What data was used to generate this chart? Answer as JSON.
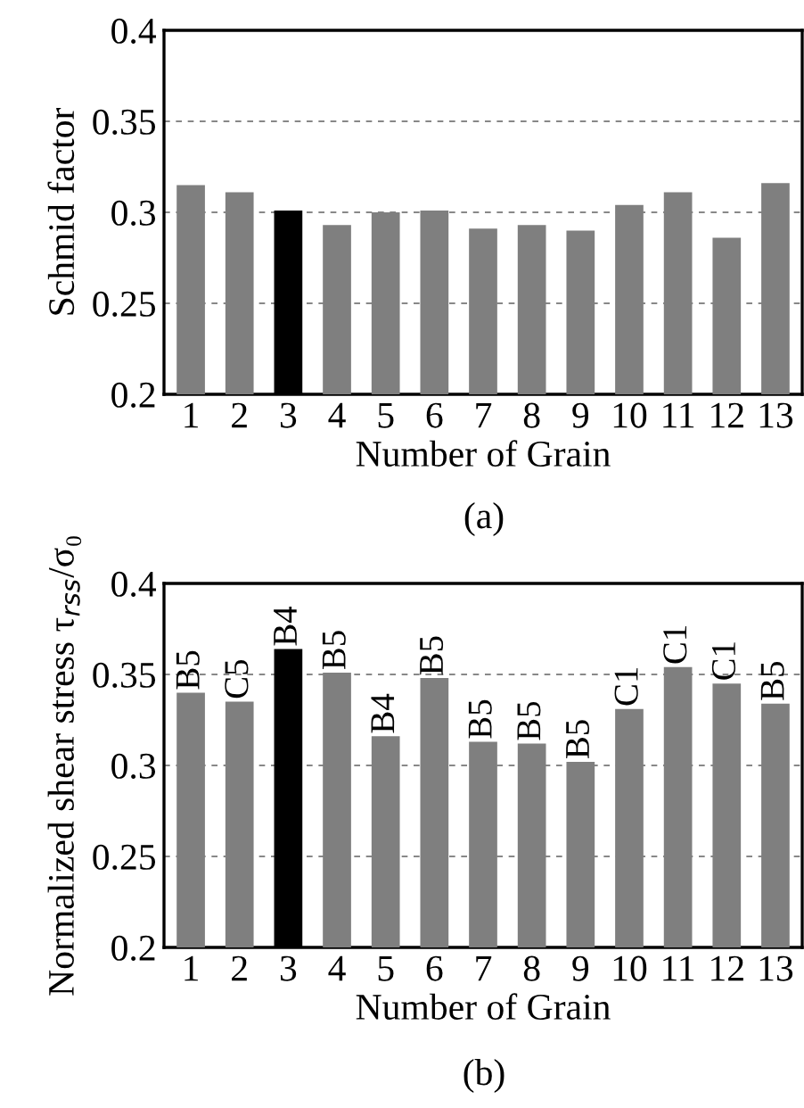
{
  "chart_data": [
    {
      "type": "bar",
      "ylabel": "Schmid factor",
      "xlabel": "Number of Grain",
      "annotations": [
        "(a)"
      ],
      "categories": [
        "1",
        "2",
        "3",
        "4",
        "5",
        "6",
        "7",
        "8",
        "9",
        "10",
        "11",
        "12",
        "13"
      ],
      "values": [
        0.315,
        0.311,
        0.301,
        0.293,
        0.3,
        0.301,
        0.291,
        0.293,
        0.29,
        0.304,
        0.311,
        0.286,
        0.316
      ],
      "colors": [
        "#7f7f7f",
        "#7f7f7f",
        "#000000",
        "#7f7f7f",
        "#7f7f7f",
        "#7f7f7f",
        "#7f7f7f",
        "#7f7f7f",
        "#7f7f7f",
        "#7f7f7f",
        "#7f7f7f",
        "#7f7f7f",
        "#7f7f7f"
      ],
      "ylim": [
        0.2,
        0.4
      ],
      "yticks": [
        0.2,
        0.25,
        0.3,
        0.35,
        0.4
      ],
      "grid": "y"
    },
    {
      "type": "bar",
      "ylabel": "Normalized shear stress τ$_{rss}$/σ₀",
      "xlabel": "Number of Grain",
      "annotations": [
        "(b)"
      ],
      "categories": [
        "1",
        "2",
        "3",
        "4",
        "5",
        "6",
        "7",
        "8",
        "9",
        "10",
        "11",
        "12",
        "13"
      ],
      "values": [
        0.34,
        0.335,
        0.364,
        0.351,
        0.316,
        0.348,
        0.313,
        0.312,
        0.302,
        0.331,
        0.354,
        0.345,
        0.334
      ],
      "value_labels": [
        "B5",
        "C5",
        "B4",
        "B5",
        "B4",
        "B5",
        "B5",
        "B5",
        "B5",
        "C1",
        "C1",
        "C1",
        "B5"
      ],
      "colors": [
        "#7f7f7f",
        "#7f7f7f",
        "#000000",
        "#7f7f7f",
        "#7f7f7f",
        "#7f7f7f",
        "#7f7f7f",
        "#7f7f7f",
        "#7f7f7f",
        "#7f7f7f",
        "#7f7f7f",
        "#7f7f7f",
        "#7f7f7f"
      ],
      "ylim": [
        0.2,
        0.4
      ],
      "yticks": [
        0.2,
        0.25,
        0.3,
        0.35,
        0.4
      ],
      "grid": "y"
    }
  ]
}
